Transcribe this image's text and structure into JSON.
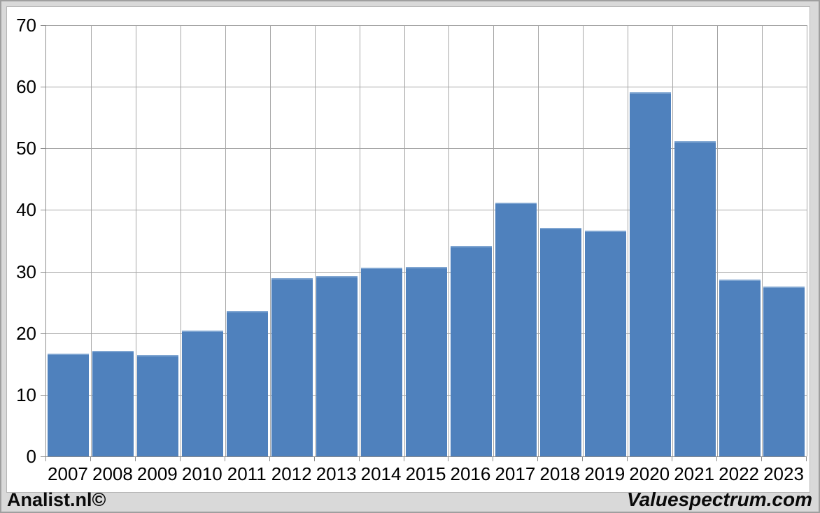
{
  "branding": {
    "left": "Analist.nl©",
    "right": "Valuespectrum.com"
  },
  "colors": {
    "bar_fill": "#4f81bd",
    "bar_edge": "#7fa5d1",
    "gridline": "#a6a6a6",
    "axis": "#8c8c8c",
    "background": "#d9d9d9",
    "panel": "#ffffff",
    "panel_border": "#b5b5b5",
    "text": "#000000"
  },
  "chart_data": {
    "type": "bar",
    "title": "",
    "xlabel": "",
    "ylabel": "",
    "categories": [
      "2007",
      "2008",
      "2009",
      "2010",
      "2011",
      "2012",
      "2013",
      "2014",
      "2015",
      "2016",
      "2017",
      "2018",
      "2019",
      "2020",
      "2021",
      "2022",
      "2023"
    ],
    "values": [
      16.7,
      17.1,
      16.4,
      20.4,
      23.6,
      28.9,
      29.3,
      30.6,
      30.7,
      34.2,
      41.2,
      37.1,
      36.7,
      59.1,
      51.2,
      28.7,
      27.6
    ],
    "ylim": [
      0,
      70
    ],
    "yticks": [
      0,
      10,
      20,
      30,
      40,
      50,
      60,
      70
    ],
    "grid": true,
    "legend_position": "none"
  }
}
